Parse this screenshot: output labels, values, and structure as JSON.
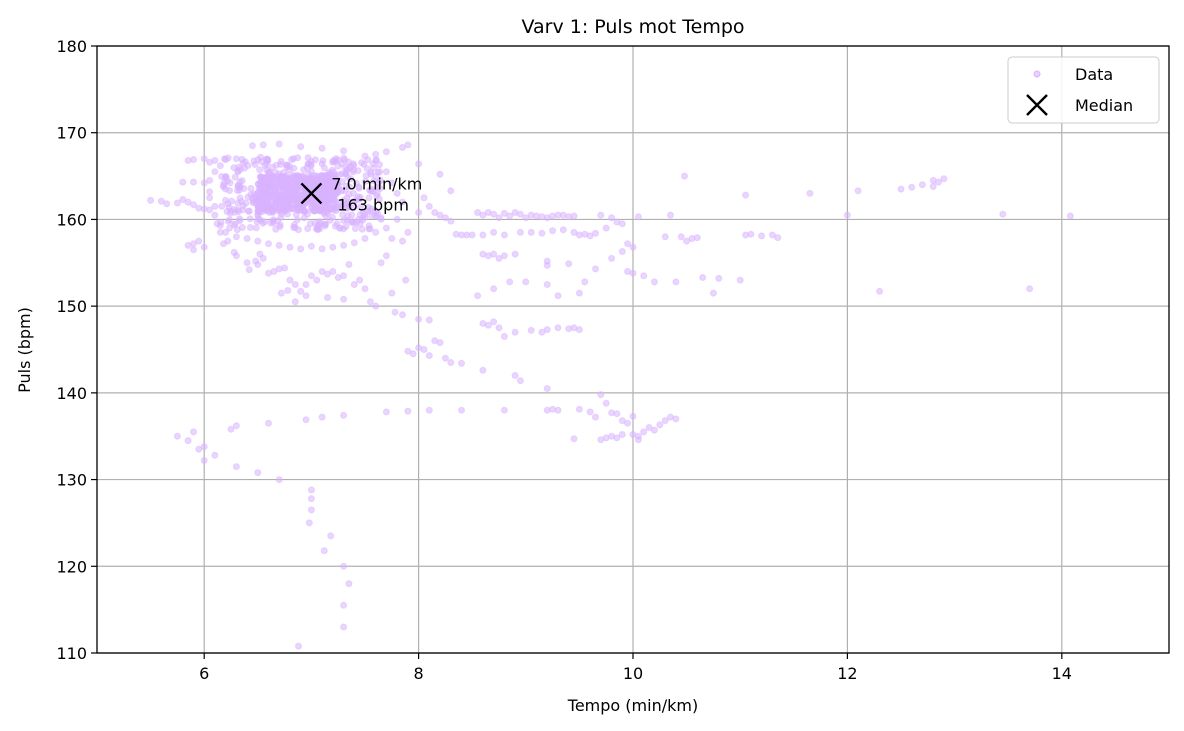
{
  "chart_data": {
    "type": "scatter",
    "title": "Varv 1: Puls mot Tempo",
    "xlabel": "Tempo (min/km)",
    "ylabel": "Puls (bpm)",
    "xlim": [
      5,
      15
    ],
    "ylim": [
      110,
      180
    ],
    "xticks": [
      6,
      8,
      10,
      12,
      14
    ],
    "yticks": [
      110,
      120,
      130,
      140,
      150,
      160,
      170,
      180
    ],
    "grid": true,
    "legend_position": "top-right",
    "colors": {
      "data": "#d9b3ff",
      "median": "#000000",
      "grid": "#b0b0b0"
    },
    "legend": [
      {
        "label": "Data",
        "marker": "point"
      },
      {
        "label": "Median",
        "marker": "x"
      }
    ],
    "median": {
      "x": 7.0,
      "y": 163,
      "label_line1": "7.0 min/km",
      "label_line2": "163 bpm"
    },
    "points": [
      [
        5.5,
        162.2
      ],
      [
        5.6,
        162.1
      ],
      [
        5.65,
        161.8
      ],
      [
        5.75,
        161.9
      ],
      [
        5.8,
        162.3
      ],
      [
        5.85,
        162.0
      ],
      [
        5.9,
        161.7
      ],
      [
        5.95,
        161.3
      ],
      [
        6.0,
        161.2
      ],
      [
        5.85,
        166.8
      ],
      [
        5.9,
        166.9
      ],
      [
        6.0,
        167.0
      ],
      [
        6.05,
        166.6
      ],
      [
        5.85,
        157.0
      ],
      [
        5.9,
        157.2
      ],
      [
        5.95,
        157.5
      ],
      [
        6.0,
        156.8
      ],
      [
        5.9,
        156.5
      ],
      [
        5.8,
        164.3
      ],
      [
        5.9,
        164.3
      ],
      [
        6.0,
        164.2
      ],
      [
        6.05,
        163.2
      ],
      [
        6.05,
        161.1
      ],
      [
        6.1,
        161.5
      ],
      [
        6.12,
        159.5
      ],
      [
        6.15,
        158.5
      ],
      [
        6.2,
        162.2
      ],
      [
        6.25,
        161.0
      ],
      [
        6.18,
        157.2
      ],
      [
        6.22,
        157.5
      ],
      [
        6.28,
        156.2
      ],
      [
        6.3,
        155.8
      ],
      [
        6.4,
        155.0
      ],
      [
        6.42,
        154.2
      ],
      [
        6.48,
        155.2
      ],
      [
        6.5,
        154.8
      ],
      [
        6.52,
        156.0
      ],
      [
        6.55,
        155.5
      ],
      [
        6.6,
        153.8
      ],
      [
        6.65,
        154.0
      ],
      [
        6.7,
        154.3
      ],
      [
        6.75,
        154.4
      ],
      [
        6.8,
        153.0
      ],
      [
        6.85,
        152.5
      ],
      [
        6.78,
        151.8
      ],
      [
        6.72,
        151.5
      ],
      [
        6.9,
        151.7
      ],
      [
        6.95,
        152.5
      ],
      [
        7.0,
        153.5
      ],
      [
        7.05,
        153.0
      ],
      [
        7.1,
        154.0
      ],
      [
        7.15,
        153.7
      ],
      [
        7.2,
        154.0
      ],
      [
        7.25,
        153.3
      ],
      [
        7.3,
        153.5
      ],
      [
        7.35,
        154.8
      ],
      [
        7.4,
        152.5
      ],
      [
        7.45,
        153.0
      ],
      [
        7.5,
        152.0
      ],
      [
        7.55,
        150.5
      ],
      [
        7.6,
        150.0
      ],
      [
        7.65,
        155.0
      ],
      [
        7.7,
        155.8
      ],
      [
        7.75,
        151.5
      ],
      [
        7.78,
        149.3
      ],
      [
        7.85,
        149.0
      ],
      [
        7.88,
        153.0
      ],
      [
        7.3,
        150.8
      ],
      [
        7.15,
        151.0
      ],
      [
        6.95,
        151.2
      ],
      [
        6.85,
        150.5
      ],
      [
        7.8,
        160.0
      ],
      [
        7.9,
        158.5
      ],
      [
        8.0,
        160.8
      ],
      [
        8.05,
        162.5
      ],
      [
        8.1,
        161.5
      ],
      [
        8.15,
        160.8
      ],
      [
        8.2,
        160.5
      ],
      [
        8.25,
        160.2
      ],
      [
        8.3,
        159.8
      ],
      [
        8.35,
        158.3
      ],
      [
        8.4,
        158.2
      ],
      [
        8.45,
        158.2
      ],
      [
        8.5,
        158.2
      ],
      [
        8.3,
        163.3
      ],
      [
        8.2,
        165.2
      ],
      [
        8.0,
        166.4
      ],
      [
        7.85,
        168.3
      ],
      [
        7.9,
        168.6
      ],
      [
        7.7,
        167.8
      ],
      [
        7.6,
        167.5
      ],
      [
        8.55,
        160.8
      ],
      [
        8.6,
        160.5
      ],
      [
        8.65,
        160.8
      ],
      [
        8.7,
        160.6
      ],
      [
        8.75,
        160.2
      ],
      [
        8.8,
        160.7
      ],
      [
        8.85,
        160.4
      ],
      [
        8.9,
        160.8
      ],
      [
        8.95,
        160.6
      ],
      [
        9.0,
        160.2
      ],
      [
        9.05,
        160.5
      ],
      [
        9.1,
        160.4
      ],
      [
        9.15,
        160.3
      ],
      [
        9.2,
        160.2
      ],
      [
        9.25,
        160.4
      ],
      [
        9.3,
        160.5
      ],
      [
        9.35,
        160.5
      ],
      [
        9.4,
        160.3
      ],
      [
        9.45,
        160.4
      ],
      [
        8.6,
        156.0
      ],
      [
        8.65,
        155.8
      ],
      [
        8.7,
        156.0
      ],
      [
        8.75,
        155.5
      ],
      [
        8.8,
        155.8
      ],
      [
        8.9,
        156.0
      ],
      [
        8.6,
        158.2
      ],
      [
        8.7,
        158.5
      ],
      [
        8.8,
        158.2
      ],
      [
        8.95,
        158.5
      ],
      [
        9.05,
        158.5
      ],
      [
        9.15,
        158.4
      ],
      [
        9.25,
        158.7
      ],
      [
        9.35,
        158.8
      ],
      [
        9.45,
        158.5
      ],
      [
        9.5,
        158.2
      ],
      [
        9.55,
        158.3
      ],
      [
        9.6,
        158.1
      ],
      [
        9.65,
        158.4
      ],
      [
        9.7,
        160.5
      ],
      [
        9.75,
        159.0
      ],
      [
        9.8,
        160.2
      ],
      [
        9.85,
        159.7
      ],
      [
        9.9,
        159.5
      ],
      [
        9.95,
        157.2
      ],
      [
        10.0,
        156.8
      ],
      [
        10.05,
        160.3
      ],
      [
        9.2,
        155.2
      ],
      [
        9.2,
        154.7
      ],
      [
        9.4,
        154.9
      ],
      [
        9.65,
        154.3
      ],
      [
        9.8,
        155.5
      ],
      [
        9.9,
        156.3
      ],
      [
        10.1,
        153.5
      ],
      [
        10.2,
        152.8
      ],
      [
        10.4,
        152.8
      ],
      [
        10.5,
        157.5
      ],
      [
        10.55,
        157.8
      ],
      [
        10.6,
        157.9
      ],
      [
        10.65,
        153.3
      ],
      [
        10.3,
        158.0
      ],
      [
        10.35,
        160.5
      ],
      [
        10.45,
        158.0
      ],
      [
        10.48,
        165.0
      ],
      [
        10.75,
        151.5
      ],
      [
        10.8,
        153.2
      ],
      [
        11.0,
        153.0
      ],
      [
        11.05,
        158.2
      ],
      [
        11.1,
        158.3
      ],
      [
        11.2,
        158.1
      ],
      [
        11.3,
        158.2
      ],
      [
        11.35,
        157.9
      ],
      [
        11.05,
        162.8
      ],
      [
        11.65,
        163.0
      ],
      [
        12.0,
        160.5
      ],
      [
        12.1,
        163.3
      ],
      [
        12.3,
        151.7
      ],
      [
        12.5,
        163.5
      ],
      [
        12.6,
        163.7
      ],
      [
        12.7,
        164.0
      ],
      [
        12.8,
        163.8
      ],
      [
        12.85,
        164.3
      ],
      [
        12.9,
        164.7
      ],
      [
        12.8,
        164.5
      ],
      [
        13.45,
        160.6
      ],
      [
        13.7,
        152.0
      ],
      [
        14.08,
        160.4
      ],
      [
        8.0,
        148.5
      ],
      [
        8.1,
        148.4
      ],
      [
        8.6,
        148.0
      ],
      [
        8.65,
        147.8
      ],
      [
        8.7,
        148.2
      ],
      [
        8.75,
        147.5
      ],
      [
        8.8,
        146.5
      ],
      [
        8.9,
        147.0
      ],
      [
        9.05,
        147.2
      ],
      [
        9.15,
        147.0
      ],
      [
        9.2,
        147.3
      ],
      [
        9.3,
        147.5
      ],
      [
        9.4,
        147.4
      ],
      [
        9.45,
        147.5
      ],
      [
        9.5,
        147.3
      ],
      [
        8.55,
        151.2
      ],
      [
        8.7,
        152.0
      ],
      [
        8.85,
        152.8
      ],
      [
        9.0,
        152.8
      ],
      [
        9.2,
        152.5
      ],
      [
        9.3,
        151.2
      ],
      [
        9.5,
        151.5
      ],
      [
        9.55,
        152.8
      ],
      [
        9.95,
        154.0
      ],
      [
        10.0,
        153.8
      ],
      [
        7.9,
        144.8
      ],
      [
        7.95,
        144.5
      ],
      [
        8.0,
        145.2
      ],
      [
        8.05,
        145.0
      ],
      [
        8.1,
        144.3
      ],
      [
        8.15,
        146.0
      ],
      [
        8.2,
        145.8
      ],
      [
        8.25,
        144.0
      ],
      [
        8.3,
        143.5
      ],
      [
        8.4,
        143.4
      ],
      [
        8.6,
        142.6
      ],
      [
        8.9,
        142.0
      ],
      [
        8.95,
        141.4
      ],
      [
        9.2,
        140.5
      ],
      [
        7.7,
        137.8
      ],
      [
        7.9,
        137.9
      ],
      [
        8.1,
        138.0
      ],
      [
        8.4,
        138.0
      ],
      [
        8.8,
        138.0
      ],
      [
        9.2,
        138.0
      ],
      [
        9.25,
        138.1
      ],
      [
        9.3,
        138.0
      ],
      [
        9.45,
        134.7
      ],
      [
        9.5,
        138.1
      ],
      [
        9.6,
        137.8
      ],
      [
        9.65,
        137.2
      ],
      [
        9.7,
        139.8
      ],
      [
        9.75,
        138.8
      ],
      [
        9.7,
        134.6
      ],
      [
        9.75,
        134.8
      ],
      [
        9.8,
        135.0
      ],
      [
        9.85,
        134.8
      ],
      [
        9.9,
        135.2
      ],
      [
        9.95,
        136.5
      ],
      [
        10.0,
        135.2
      ],
      [
        10.05,
        135.0
      ],
      [
        10.05,
        134.6
      ],
      [
        10.1,
        135.5
      ],
      [
        10.15,
        136.0
      ],
      [
        10.2,
        135.7
      ],
      [
        10.25,
        136.3
      ],
      [
        10.3,
        136.8
      ],
      [
        10.35,
        137.2
      ],
      [
        10.4,
        137.0
      ],
      [
        10.0,
        137.3
      ],
      [
        9.85,
        137.6
      ],
      [
        9.9,
        136.8
      ],
      [
        9.8,
        137.7
      ],
      [
        5.75,
        135.0
      ],
      [
        5.85,
        134.5
      ],
      [
        5.9,
        135.5
      ],
      [
        5.95,
        133.5
      ],
      [
        6.0,
        133.8
      ],
      [
        6.0,
        132.2
      ],
      [
        6.1,
        132.8
      ],
      [
        6.25,
        135.8
      ],
      [
        6.3,
        136.2
      ],
      [
        6.3,
        131.5
      ],
      [
        6.5,
        130.8
      ],
      [
        6.6,
        136.5
      ],
      [
        6.7,
        130.0
      ],
      [
        6.95,
        136.9
      ],
      [
        7.1,
        137.2
      ],
      [
        7.3,
        137.4
      ],
      [
        7.0,
        128.8
      ],
      [
        7.0,
        127.8
      ],
      [
        7.0,
        126.5
      ],
      [
        6.98,
        125.0
      ],
      [
        7.12,
        121.8
      ],
      [
        7.18,
        123.5
      ],
      [
        7.3,
        120.0
      ],
      [
        7.35,
        118.0
      ],
      [
        7.3,
        115.5
      ],
      [
        7.3,
        113.0
      ],
      [
        6.88,
        110.8
      ],
      [
        6.1,
        166.8
      ],
      [
        6.2,
        166.9
      ],
      [
        6.3,
        167.0
      ],
      [
        6.45,
        168.5
      ],
      [
        6.55,
        168.6
      ],
      [
        6.7,
        168.7
      ],
      [
        6.9,
        168.4
      ],
      [
        7.1,
        168.2
      ],
      [
        7.3,
        167.9
      ],
      [
        7.5,
        167.3
      ],
      [
        7.6,
        166.8
      ],
      [
        7.7,
        165.5
      ],
      [
        7.75,
        164.2
      ],
      [
        7.8,
        163.0
      ],
      [
        7.85,
        162.0
      ],
      [
        7.7,
        159.0
      ],
      [
        7.6,
        158.5
      ],
      [
        7.5,
        157.8
      ],
      [
        7.4,
        157.3
      ],
      [
        7.3,
        157.0
      ],
      [
        7.2,
        156.8
      ],
      [
        7.1,
        156.6
      ],
      [
        7.0,
        156.9
      ],
      [
        6.9,
        156.6
      ],
      [
        6.8,
        156.8
      ],
      [
        6.7,
        157.0
      ],
      [
        6.6,
        157.2
      ],
      [
        6.5,
        157.5
      ],
      [
        6.4,
        157.8
      ],
      [
        6.3,
        158.0
      ],
      [
        6.2,
        158.5
      ],
      [
        6.15,
        159.3
      ],
      [
        6.1,
        160.5
      ],
      [
        6.05,
        162.5
      ],
      [
        6.05,
        164.5
      ],
      [
        6.1,
        165.5
      ],
      [
        6.15,
        166.2
      ],
      [
        7.75,
        157.8
      ],
      [
        7.85,
        157.5
      ],
      [
        7.65,
        160.0
      ],
      [
        7.55,
        161.0
      ]
    ],
    "dense_cluster": {
      "x_min": 6.15,
      "x_max": 7.65,
      "y_min": 158.8,
      "y_max": 167.2,
      "center_x": 6.85,
      "center_y": 163.0
    }
  }
}
